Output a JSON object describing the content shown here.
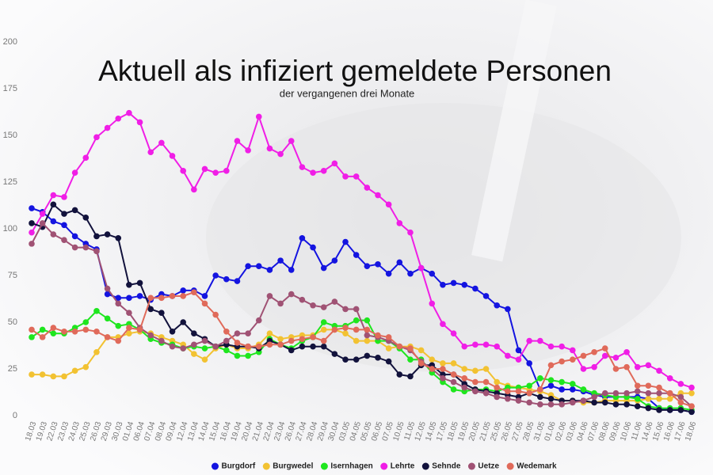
{
  "chart_data": {
    "type": "line",
    "title": "Aktuell als infiziert gemeldete Personen",
    "subtitle": "der vergangenen drei Monate",
    "categories": [
      "18.03",
      "19.03",
      "22.03",
      "23.03",
      "24.03",
      "25.03",
      "26.03",
      "29.03",
      "30.03",
      "01.04",
      "06.04",
      "07.04",
      "08.04",
      "09.04",
      "12.04",
      "13.04",
      "14.04",
      "15.04",
      "16.04",
      "19.04",
      "20.04",
      "21.04",
      "22.04",
      "23.04",
      "26.04",
      "27.04",
      "28.04",
      "29.04",
      "30.04",
      "03.05",
      "04.05",
      "05.05",
      "06.05",
      "07.05",
      "10.05",
      "11.05",
      "12.05",
      "14.05",
      "17.05",
      "18.05",
      "19.05",
      "20.05",
      "21.05",
      "25.05",
      "26.05",
      "27.05",
      "28.05",
      "31.05",
      "01.06",
      "02.06",
      "03.06",
      "04.06",
      "07.06",
      "08.06",
      "09.06",
      "10.06",
      "11.06",
      "14.06",
      "15.06",
      "16.06",
      "17.06",
      "18.06"
    ],
    "series": [
      {
        "name": "Burgdorf",
        "color": "#1414e0",
        "values": [
          111,
          109,
          104,
          102,
          96,
          92,
          89,
          65,
          63,
          63,
          64,
          62,
          65,
          64,
          67,
          67,
          64,
          75,
          73,
          72,
          80,
          80,
          78,
          83,
          78,
          95,
          90,
          79,
          83,
          93,
          86,
          80,
          81,
          76,
          82,
          76,
          79,
          76,
          70,
          71,
          70,
          68,
          64,
          59,
          57,
          35,
          28,
          14,
          16,
          14,
          14,
          13,
          11,
          10,
          10,
          10,
          10,
          9,
          4,
          3,
          3,
          2
        ]
      },
      {
        "name": "Burgwedel",
        "color": "#f2c232",
        "values": [
          22,
          22,
          21,
          21,
          24,
          26,
          34,
          42,
          42,
          44,
          45,
          44,
          42,
          40,
          38,
          33,
          30,
          36,
          38,
          36,
          36,
          38,
          44,
          41,
          42,
          43,
          43,
          46,
          46,
          44,
          40,
          40,
          40,
          36,
          37,
          37,
          35,
          30,
          28,
          28,
          25,
          24,
          25,
          18,
          16,
          15,
          14,
          13,
          11,
          8,
          8,
          7,
          7,
          8,
          8,
          8,
          8,
          9,
          9,
          9,
          12,
          12
        ]
      },
      {
        "name": "Isernhagen",
        "color": "#1ee61e",
        "values": [
          42,
          46,
          44,
          44,
          47,
          50,
          56,
          52,
          48,
          49,
          46,
          41,
          39,
          38,
          36,
          37,
          36,
          37,
          35,
          32,
          32,
          34,
          41,
          38,
          36,
          40,
          42,
          50,
          48,
          48,
          51,
          51,
          40,
          40,
          36,
          30,
          30,
          23,
          18,
          14,
          13,
          14,
          14,
          13,
          15,
          15,
          16,
          20,
          19,
          18,
          17,
          14,
          12,
          11,
          10,
          10,
          9,
          5,
          4,
          4,
          4,
          3
        ]
      },
      {
        "name": "Lehrte",
        "color": "#f01ee6",
        "values": [
          98,
          108,
          118,
          117,
          130,
          138,
          149,
          154,
          159,
          162,
          157,
          141,
          146,
          139,
          131,
          121,
          132,
          130,
          131,
          147,
          142,
          160,
          143,
          140,
          147,
          133,
          130,
          131,
          135,
          128,
          128,
          122,
          118,
          113,
          103,
          98,
          79,
          60,
          49,
          44,
          37,
          38,
          38,
          37,
          32,
          30,
          40,
          40,
          37,
          37,
          35,
          25,
          26,
          32,
          31,
          34,
          26,
          27,
          24,
          20,
          17,
          15
        ]
      },
      {
        "name": "Sehnde",
        "color": "#12123c",
        "values": [
          103,
          101,
          113,
          108,
          110,
          106,
          96,
          97,
          95,
          70,
          71,
          57,
          55,
          45,
          50,
          44,
          41,
          37,
          38,
          37,
          37,
          36,
          40,
          38,
          35,
          37,
          37,
          37,
          33,
          30,
          30,
          32,
          31,
          29,
          22,
          21,
          27,
          27,
          22,
          22,
          17,
          14,
          13,
          12,
          11,
          10,
          12,
          10,
          9,
          8,
          8,
          8,
          7,
          7,
          6,
          6,
          5,
          4,
          3,
          3,
          3,
          2
        ]
      },
      {
        "name": "Uetze",
        "color": "#a05274",
        "values": [
          92,
          103,
          97,
          94,
          90,
          90,
          88,
          68,
          60,
          55,
          47,
          43,
          40,
          37,
          36,
          38,
          40,
          37,
          40,
          44,
          44,
          51,
          64,
          60,
          65,
          62,
          59,
          58,
          61,
          57,
          57,
          43,
          42,
          40,
          37,
          35,
          29,
          25,
          20,
          18,
          15,
          13,
          12,
          10,
          9,
          8,
          7,
          6,
          6,
          6,
          7,
          8,
          10,
          12,
          12,
          12,
          13,
          12,
          12,
          12,
          10,
          5
        ]
      },
      {
        "name": "Wedemark",
        "color": "#e06a5a",
        "values": [
          46,
          42,
          47,
          45,
          45,
          46,
          45,
          42,
          40,
          47,
          46,
          63,
          63,
          64,
          64,
          66,
          60,
          54,
          45,
          39,
          37,
          37,
          38,
          38,
          40,
          41,
          42,
          40,
          46,
          47,
          46,
          46,
          43,
          42,
          37,
          36,
          28,
          25,
          25,
          22,
          20,
          18,
          18,
          15,
          13,
          13,
          12,
          14,
          27,
          29,
          30,
          32,
          34,
          36,
          25,
          26,
          16,
          16,
          15,
          12,
          7,
          5
        ]
      }
    ],
    "ylim": [
      0,
      200
    ],
    "yticks": [
      0,
      25,
      50,
      75,
      100,
      125,
      150,
      175,
      200
    ],
    "grid": false,
    "legend": "bottom"
  }
}
